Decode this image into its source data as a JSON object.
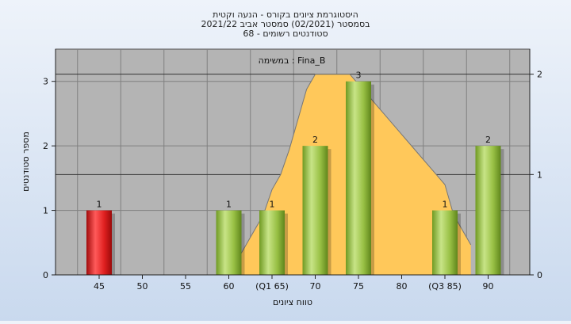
{
  "chart_data": {
    "type": "bar",
    "title_lines": [
      "היסטוגרמת ציונים בקורס - הנעה וקטית",
      "בסמסטר  (02/2021)  סמסטר אביב 2021/22",
      "סטודנטים רשומים - 68"
    ],
    "annotation": "במשימה : Fina_B",
    "xlabel": "טווח ציונים",
    "ylabel": "מספר סטודנטים",
    "categories": [
      "45",
      "50",
      "55",
      "60",
      "(Q1 65)",
      "70",
      "75",
      "80",
      "(Q3 85)",
      "90"
    ],
    "values": [
      1,
      0,
      0,
      1,
      1,
      2,
      3,
      0,
      1,
      2
    ],
    "bar_labels": [
      "1",
      "",
      "",
      "1",
      "1",
      "2",
      "3",
      "",
      "1",
      "2"
    ],
    "bar_colors": [
      "red",
      "",
      "",
      "green",
      "green",
      "green",
      "green",
      "",
      "green",
      "green"
    ],
    "ylim": [
      0,
      3.5
    ],
    "yticks": [
      0,
      1,
      2,
      3
    ],
    "y2lim": [
      0,
      2.25
    ],
    "y2ticks": [
      0,
      1,
      2
    ],
    "curve": {
      "x": [
        60,
        64,
        65,
        66,
        67,
        68,
        69,
        70,
        72,
        74,
        76,
        78,
        80,
        82,
        84,
        85,
        86,
        88
      ],
      "values": [
        0,
        0.6,
        0.85,
        1.0,
        1.25,
        1.55,
        1.85,
        2.0,
        2.0,
        2.0,
        1.8,
        1.6,
        1.4,
        1.2,
        1.0,
        0.9,
        0.6,
        0.3
      ]
    },
    "grid": true,
    "colors": {
      "plot_bg": "#b4b4b4",
      "grid": "#808080",
      "area": "#ffc85a",
      "bar_green": "#9cc845",
      "bar_red": "#e02020"
    }
  }
}
